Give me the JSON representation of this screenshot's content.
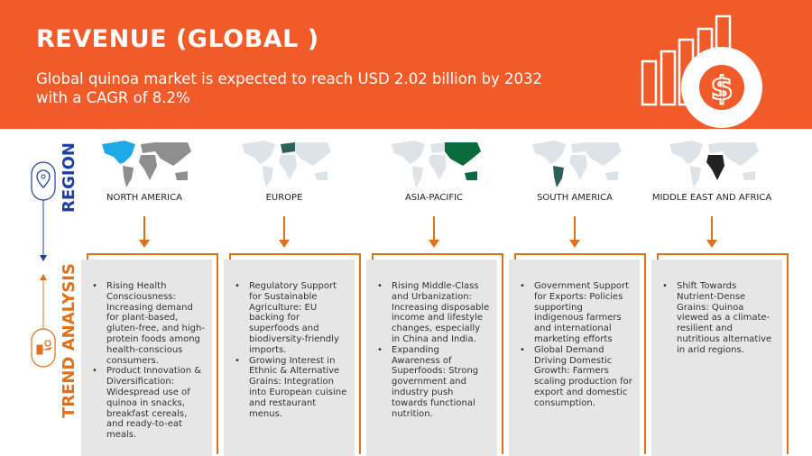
{
  "header": {
    "title": "REVENUE (GLOBAL )",
    "subtitle": " Global quinoa  market is expected to reach USD  2.02 billion by 2032 with a CAGR of 8.2%",
    "icon": "revenue-bar-chart-dollar-icon"
  },
  "side": {
    "region_label": "REGION",
    "trend_label": "TREND ANALYSIS",
    "region_icon": "location-pin-icon",
    "trend_icon": "hand-growth-icon"
  },
  "colors": {
    "header": "#F15A29",
    "accent_orange": "#E0701A",
    "blue": "#1E3FA0",
    "box": "#E6E6E6"
  },
  "regions": [
    {
      "name": "NORTH AMERICA",
      "highlight": "#1DA9E6",
      "base": "#8E8E8E",
      "trends": [
        "Rising Health Consciousness: Increasing demand for plant-based, gluten-free, and high-protein foods among health-conscious consumers.",
        "Product Innovation & Diversification: Widespread use of quinoa in snacks, breakfast cereals, and ready-to-eat meals."
      ]
    },
    {
      "name": "EUROPE",
      "highlight": "#2F5F5A",
      "base": "#DDE3E6",
      "trends": [
        "Regulatory Support for Sustainable Agriculture: EU backing for superfoods and biodiversity-friendly imports.",
        "Growing Interest in Ethnic & Alternative Grains: Integration into European cuisine and restaurant menus."
      ]
    },
    {
      "name": "ASIA-PACIFIC",
      "highlight": "#0C6B3C",
      "base": "#DDE3E6",
      "trends": [
        "Rising Middle-Class and Urbanization: Increasing disposable income and lifestyle changes, especially in China and India.",
        "Expanding Awareness of Superfoods: Strong government and industry push towards functional nutrition."
      ]
    },
    {
      "name": "SOUTH AMERICA",
      "highlight": "#2F5F5A",
      "base": "#DDE3E6",
      "trends": [
        "Government Support for Exports: Policies supporting indigenous farmers and international marketing efforts",
        "Global Demand Driving Domestic Growth: Farmers scaling production for export and domestic consumption."
      ]
    },
    {
      "name": "MIDDLE EAST AND AFRICA",
      "highlight": "#222222",
      "base": "#DDE3E6",
      "trends": [
        "Shift Towards Nutrient-Dense Grains: Quinoa viewed as a climate-resilient and nutritious alternative in arid regions."
      ]
    }
  ]
}
